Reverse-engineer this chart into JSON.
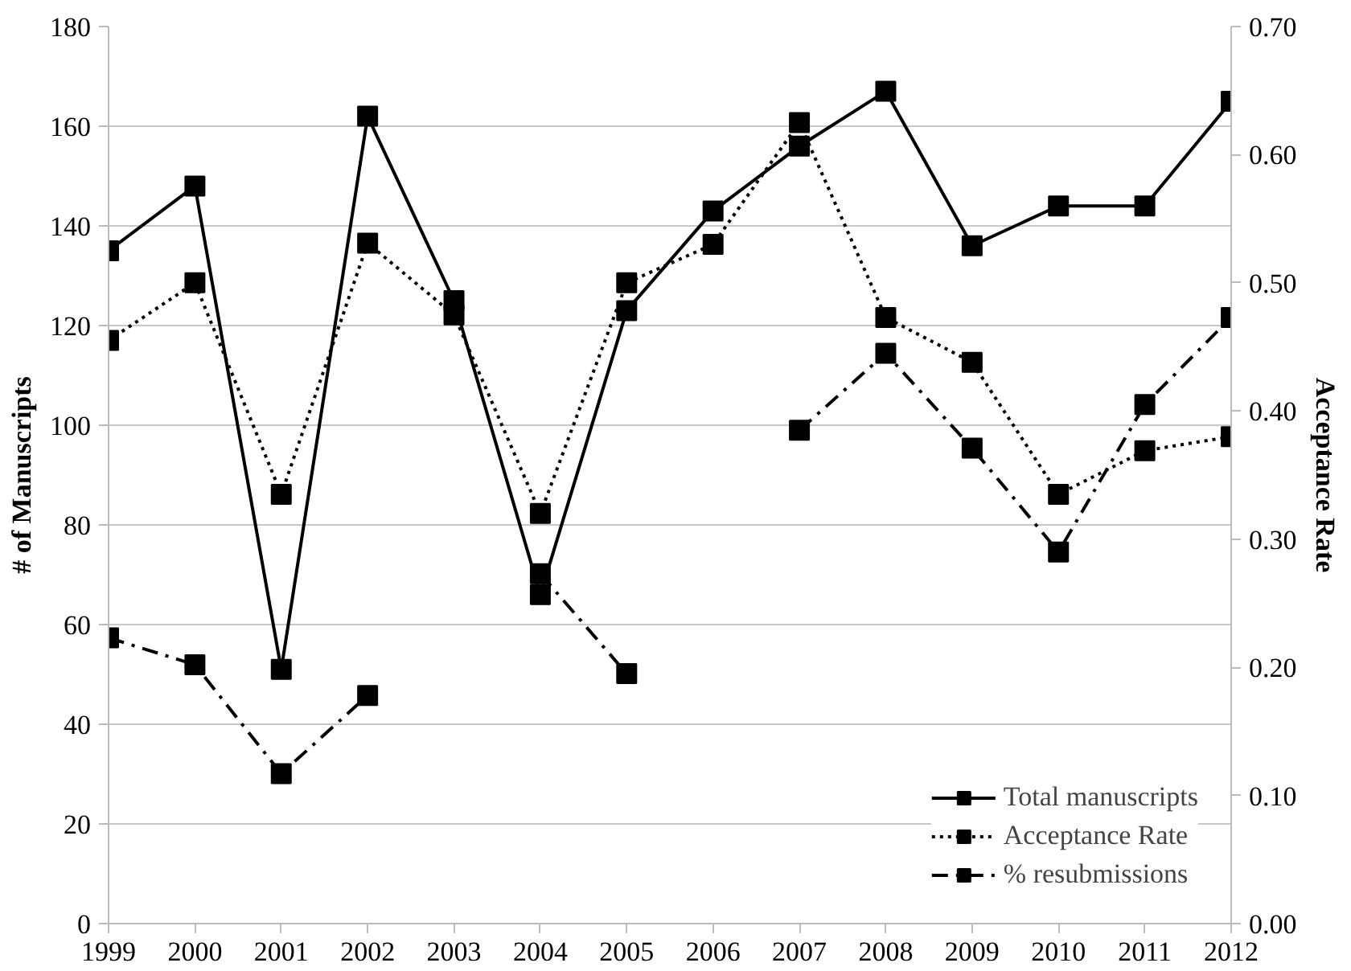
{
  "chart_data": {
    "type": "line",
    "x": [
      1999,
      2000,
      2001,
      2002,
      2003,
      2004,
      2005,
      2006,
      2007,
      2008,
      2009,
      2010,
      2011,
      2012
    ],
    "series": [
      {
        "name": "Total manuscripts",
        "color": "#000000",
        "line_style": "solid",
        "values": [
          135,
          148,
          51,
          162,
          125,
          66,
          123,
          143,
          156,
          167,
          136,
          144,
          144,
          165
        ]
      },
      {
        "name": "Acceptance Rate",
        "color": "#000000",
        "line_style": "dotted",
        "axis": "y2",
        "values": [
          0.455,
          0.5,
          0.335,
          0.531,
          0.475,
          0.32,
          0.5,
          0.53,
          0.625,
          0.473,
          0.438,
          0.335,
          0.369,
          0.38
        ]
      },
      {
        "name": "% resubmissions",
        "color": "#000000",
        "line_style": "dashed",
        "axis": "y2",
        "values": [
          0.223,
          0.202,
          0.117,
          0.178,
          null,
          0.273,
          0.195,
          null,
          0.385,
          0.445,
          0.371,
          0.29,
          0.405,
          0.473
        ]
      }
    ],
    "ylabel": "# of Manuscripts",
    "y2label": "Acceptance Rate",
    "xlim": [
      1999,
      2012
    ],
    "xticks": [
      1999,
      2000,
      2001,
      2002,
      2003,
      2004,
      2005,
      2006,
      2007,
      2008,
      2009,
      2010,
      2011,
      2012
    ],
    "ylim": [
      0,
      180
    ],
    "yticks": [
      0,
      20,
      40,
      60,
      80,
      100,
      120,
      140,
      160,
      180
    ],
    "y2lim": [
      0,
      0.7
    ],
    "y2ticks": [
      {
        "value": 0,
        "label": "0.00"
      },
      {
        "value": 0.1,
        "label": "0.10"
      },
      {
        "value": 0.2,
        "label": "0.20"
      },
      {
        "value": 0.3,
        "label": "0.30"
      },
      {
        "value": 0.4,
        "label": "0.40"
      },
      {
        "value": 0.5,
        "label": "0.50"
      },
      {
        "value": 0.6,
        "label": "0.60"
      },
      {
        "value": 0.7,
        "label": "0.70"
      }
    ],
    "grid": "y",
    "legend": "bottom right",
    "marker": "square"
  }
}
